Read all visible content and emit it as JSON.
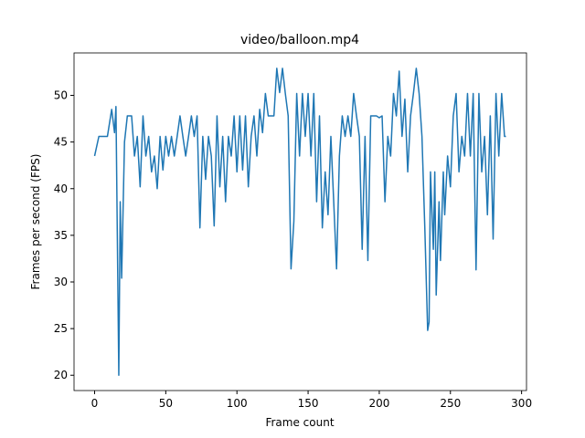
{
  "chart_data": {
    "type": "line",
    "title": "video/balloon.mp4",
    "x_label": "Frame count",
    "y_label": "Frames per second (FPS)",
    "xlim": [
      -14.45,
      303.45
    ],
    "xticks": [
      0,
      50,
      100,
      150,
      200,
      250,
      300
    ],
    "ylim": [
      18.36,
      54.55
    ],
    "yticks": [
      20,
      25,
      30,
      35,
      40,
      45,
      50
    ],
    "series": [
      {
        "color": "#1f77b4",
        "x": [
          0,
          3,
          6,
          9,
          12,
          14,
          15,
          17,
          18,
          19,
          21,
          23,
          26,
          28,
          30,
          32,
          34,
          36,
          38,
          40,
          42,
          44,
          46,
          48,
          50,
          52,
          54,
          56,
          58,
          60,
          62,
          64,
          66,
          68,
          70,
          72,
          74,
          76,
          78,
          80,
          82,
          84,
          86,
          88,
          90,
          92,
          94,
          96,
          98,
          100,
          102,
          104,
          106,
          108,
          110,
          112,
          114,
          116,
          118,
          120,
          122,
          124,
          126,
          128,
          130,
          132,
          134,
          136,
          138,
          140,
          142,
          144,
          146,
          148,
          150,
          152,
          154,
          156,
          158,
          160,
          162,
          164,
          166,
          168,
          170,
          172,
          174,
          176,
          178,
          180,
          182,
          184,
          186,
          188,
          190,
          192,
          194,
          196,
          198,
          200,
          202,
          204,
          206,
          208,
          210,
          212,
          214,
          216,
          218,
          220,
          222,
          224,
          226,
          228,
          230,
          232,
          234,
          235,
          236,
          238,
          239,
          240,
          242,
          243,
          245,
          246,
          248,
          250,
          252,
          254,
          256,
          258,
          260,
          262,
          264,
          266,
          268,
          270,
          272,
          274,
          276,
          278,
          280,
          282,
          284,
          286,
          288,
          289
        ],
        "values": [
          43.5,
          45.6,
          45.6,
          45.6,
          48.5,
          46,
          48.8,
          20,
          38.6,
          30.4,
          45,
          47.8,
          47.8,
          43.5,
          45.6,
          40.2,
          47.8,
          43.5,
          45.6,
          41.8,
          43.5,
          40,
          45.6,
          42,
          45.6,
          43.5,
          45.6,
          43.5,
          45.6,
          47.8,
          45.6,
          43.5,
          45.6,
          47.8,
          45.6,
          47.8,
          35.8,
          45.6,
          41,
          45.6,
          43.5,
          36,
          47.8,
          40.2,
          45.6,
          38.6,
          45.6,
          43.5,
          47.8,
          41.8,
          47.8,
          42,
          47.8,
          40.2,
          45.6,
          47.8,
          43.5,
          48.5,
          46,
          50.2,
          47.8,
          47.8,
          47.8,
          52.9,
          50.3,
          52.9,
          50.2,
          47.8,
          31.4,
          36.5,
          50.2,
          43.5,
          50.2,
          45.6,
          50.2,
          43.5,
          50.2,
          38.6,
          47.8,
          35.8,
          41.8,
          37.2,
          45.6,
          38.6,
          31.4,
          43.5,
          47.8,
          45.6,
          47.8,
          45.6,
          50.2,
          47.8,
          45.6,
          33.5,
          45.6,
          32.3,
          47.8,
          47.8,
          47.8,
          47.6,
          47.8,
          38.6,
          45.6,
          43.5,
          50.2,
          47.8,
          52.6,
          45.6,
          49.6,
          41.8,
          47.8,
          50.2,
          52.9,
          50.2,
          45.6,
          35.8,
          24.8,
          25.7,
          41.8,
          33.5,
          41.8,
          28.6,
          38.6,
          32.3,
          41.8,
          37.2,
          43.5,
          40.2,
          47.8,
          50.2,
          41.8,
          45.6,
          43.5,
          50.2,
          43.5,
          50.2,
          31.3,
          50.2,
          41.8,
          45.6,
          37.2,
          47.8,
          34.6,
          50.2,
          43.5,
          50.2,
          45.6,
          45.6
        ]
      }
    ]
  }
}
